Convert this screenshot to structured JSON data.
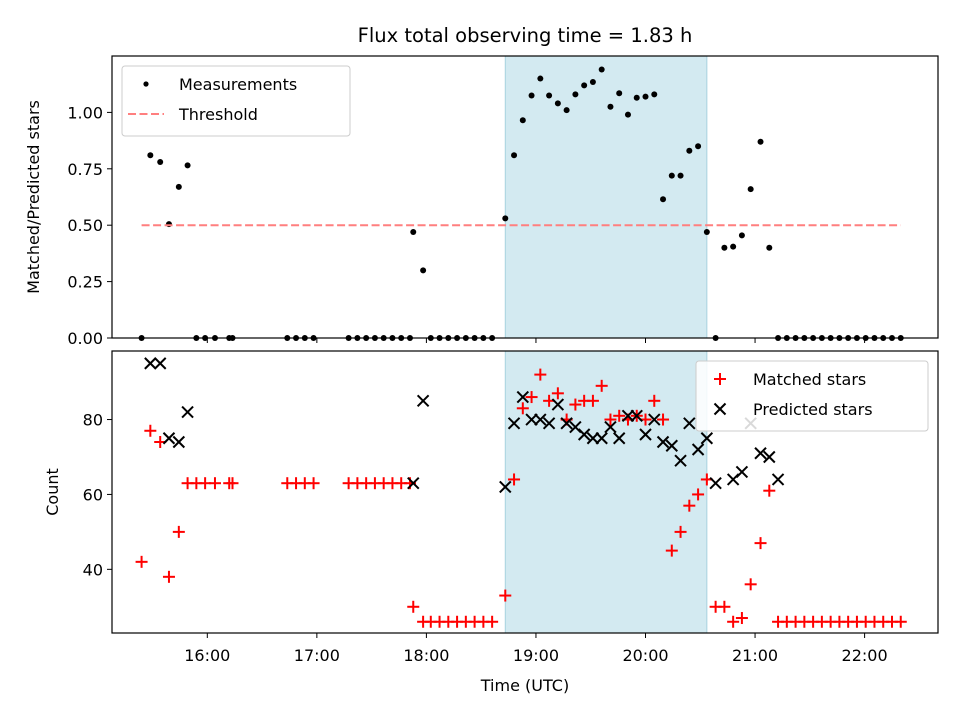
{
  "chart_data": [
    {
      "type": "scatter",
      "title": "Flux total observing time = 1.83 h",
      "ylabel": "Matched/Predicted stars",
      "xlabel": "",
      "xlim": [
        15.13,
        22.67
      ],
      "ylim": [
        0,
        1.25
      ],
      "yticks": [
        0,
        0.25,
        0.5,
        0.75,
        1.0
      ],
      "ytick_labels": [
        "0.00",
        "0.25",
        "0.50",
        "0.75",
        "1.00"
      ],
      "xticks": [
        16,
        17,
        18,
        19,
        20,
        21,
        22
      ],
      "legend": {
        "position": "upper-left"
      },
      "highlight_span": {
        "x": [
          18.72,
          20.56
        ],
        "color": "#d3eaf1"
      },
      "series": [
        {
          "name": "Measurements",
          "color": "#000000",
          "marker": "dot",
          "x": [
            15.4,
            15.48,
            15.57,
            15.65,
            15.74,
            15.82,
            15.9,
            15.98,
            16.07,
            16.2,
            16.23,
            16.73,
            16.81,
            16.89,
            16.97,
            17.29,
            17.37,
            17.45,
            17.53,
            17.61,
            17.69,
            17.77,
            17.85,
            17.88,
            17.97,
            18.04,
            18.12,
            18.2,
            18.28,
            18.36,
            18.44,
            18.52,
            18.6,
            18.72,
            18.8,
            18.88,
            18.96,
            19.04,
            19.12,
            19.2,
            19.28,
            19.36,
            19.44,
            19.52,
            19.6,
            19.68,
            19.76,
            19.84,
            19.92,
            20.0,
            20.08,
            20.16,
            20.24,
            20.32,
            20.4,
            20.48,
            20.56,
            20.64,
            20.72,
            20.8,
            20.88,
            20.96,
            21.05,
            21.13,
            21.21,
            21.29,
            21.37,
            21.45,
            21.53,
            21.61,
            21.69,
            21.77,
            21.85,
            21.93,
            22.01,
            22.09,
            22.17,
            22.25,
            22.33
          ],
          "y": [
            0,
            0.81,
            0.78,
            0.505,
            0.67,
            0.765,
            0,
            0,
            0,
            0,
            0,
            0,
            0,
            0,
            0,
            0,
            0,
            0,
            0,
            0,
            0,
            0,
            0,
            0.47,
            0.3,
            0,
            0,
            0,
            0,
            0,
            0,
            0,
            0,
            0.53,
            0.81,
            0.965,
            1.075,
            1.15,
            1.075,
            1.04,
            1.01,
            1.08,
            1.12,
            1.135,
            1.19,
            1.025,
            1.085,
            0.99,
            1.065,
            1.07,
            1.08,
            0.615,
            0.72,
            0.72,
            0.83,
            0.85,
            0.47,
            0,
            0.4,
            0.405,
            0.455,
            0.66,
            0.87,
            0.4,
            0,
            0,
            0,
            0,
            0,
            0,
            0,
            0,
            0,
            0,
            0,
            0,
            0,
            0,
            0
          ]
        },
        {
          "name": "Threshold",
          "color": "#ff7f7f",
          "marker": "dashed-line",
          "x": [
            15.4,
            22.33
          ],
          "y": [
            0.5,
            0.5
          ]
        }
      ]
    },
    {
      "type": "scatter",
      "title": "",
      "ylabel": "Count",
      "xlabel": "Time (UTC)",
      "xlim": [
        15.13,
        22.67
      ],
      "ylim": [
        23,
        98.3
      ],
      "yticks": [
        40,
        60,
        80
      ],
      "xticks": [
        16,
        17,
        18,
        19,
        20,
        21,
        22
      ],
      "xtick_labels": [
        "16:00",
        "17:00",
        "18:00",
        "19:00",
        "20:00",
        "21:00",
        "22:00"
      ],
      "legend": {
        "position": "upper-right"
      },
      "highlight_span": {
        "x": [
          18.72,
          20.56
        ],
        "color": "#d3eaf1"
      },
      "series": [
        {
          "name": "Matched stars",
          "color": "#ff0000",
          "marker": "plus",
          "x": [
            15.4,
            15.48,
            15.57,
            15.65,
            15.74,
            15.82,
            15.9,
            15.98,
            16.07,
            16.2,
            16.23,
            16.73,
            16.81,
            16.89,
            16.97,
            17.29,
            17.37,
            17.45,
            17.53,
            17.61,
            17.69,
            17.77,
            17.85,
            17.88,
            17.97,
            18.04,
            18.12,
            18.2,
            18.28,
            18.36,
            18.44,
            18.52,
            18.6,
            18.72,
            18.8,
            18.88,
            18.96,
            19.04,
            19.12,
            19.2,
            19.28,
            19.36,
            19.44,
            19.52,
            19.6,
            19.68,
            19.76,
            19.84,
            19.92,
            20.0,
            20.08,
            20.16,
            20.24,
            20.32,
            20.4,
            20.48,
            20.56,
            20.64,
            20.72,
            20.8,
            20.88,
            20.96,
            21.05,
            21.13,
            21.21,
            21.29,
            21.37,
            21.45,
            21.53,
            21.61,
            21.69,
            21.77,
            21.85,
            21.93,
            22.01,
            22.09,
            22.17,
            22.25,
            22.33
          ],
          "y": [
            42,
            77,
            74,
            38,
            50,
            63,
            63,
            63,
            63,
            63,
            63,
            63,
            63,
            63,
            63,
            63,
            63,
            63,
            63,
            63,
            63,
            63,
            63,
            30,
            26,
            26,
            26,
            26,
            26,
            26,
            26,
            26,
            26,
            33,
            64,
            83,
            86,
            92,
            85,
            87,
            80,
            84,
            85,
            85,
            89,
            80,
            81,
            80,
            81,
            80,
            85,
            80,
            45,
            50,
            57,
            60,
            64,
            30,
            30,
            26,
            27,
            36,
            47,
            61,
            26,
            26,
            26,
            26,
            26,
            26,
            26,
            26,
            26,
            26,
            26,
            26,
            26,
            26,
            26
          ]
        },
        {
          "name": "Predicted stars",
          "color": "#000000",
          "marker": "x",
          "x": [
            15.48,
            15.57,
            15.65,
            15.74,
            15.82,
            17.88,
            17.97,
            18.72,
            18.8,
            18.88,
            18.96,
            19.04,
            19.12,
            19.2,
            19.28,
            19.36,
            19.44,
            19.52,
            19.6,
            19.68,
            19.76,
            19.84,
            19.92,
            20.0,
            20.08,
            20.16,
            20.24,
            20.32,
            20.4,
            20.48,
            20.56,
            20.64,
            20.8,
            20.88,
            20.96,
            21.05,
            21.13,
            21.21
          ],
          "y": [
            95,
            95,
            75,
            74,
            82,
            63,
            85,
            62,
            79,
            86,
            80,
            80,
            79,
            84,
            79,
            78,
            76,
            75,
            75,
            78,
            75,
            81,
            81,
            76,
            80,
            74,
            73,
            69,
            79,
            72,
            75,
            63,
            64,
            66,
            79,
            71,
            70,
            64
          ]
        }
      ]
    }
  ]
}
